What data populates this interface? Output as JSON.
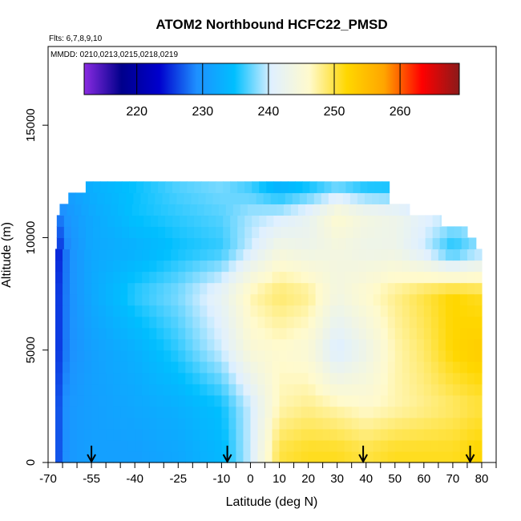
{
  "chart_data": {
    "type": "heatmap",
    "title": "ATOM2 Northbound HCFC22_PMSD",
    "annotations": {
      "flights": "Flts: 6,7,8,9,10",
      "dates": "MMDD: 0210,0213,0215,0218,0219"
    },
    "xlabel": "Latitude (deg N)",
    "ylabel": "Altitude (m)",
    "xlim": [
      -70,
      85
    ],
    "ylim": [
      0,
      18500
    ],
    "x_tick_labels": [
      "-70",
      "-55",
      "-40",
      "-25",
      "-10",
      "0",
      "10",
      "20",
      "30",
      "40",
      "50",
      "60",
      "70",
      "80"
    ],
    "x_tick_values": [
      -70,
      -55,
      -40,
      -25,
      -10,
      0,
      10,
      20,
      30,
      40,
      50,
      60,
      70,
      80
    ],
    "y_tick_labels": [
      "0",
      "5000",
      "10000",
      "15000"
    ],
    "y_tick_values": [
      0,
      5000,
      10000,
      15000
    ],
    "colorbar": {
      "ticks": [
        220,
        230,
        240,
        250,
        260
      ],
      "tick_labels": [
        "220",
        "230",
        "240",
        "250",
        "260"
      ],
      "range": [
        212,
        269
      ],
      "colors": [
        "#8a2be2",
        "#00008b",
        "#0000cd",
        "#1e90ff",
        "#00bfff",
        "#e0f0ff",
        "#fffacd",
        "#ffd700",
        "#ffa500",
        "#ff0000",
        "#8b1a1a"
      ]
    },
    "flight_arrow_latitudes": [
      -55,
      -8,
      39,
      76
    ],
    "altitude_bins_m": [
      250,
      750,
      1250,
      1750,
      2250,
      2750,
      3250,
      3750,
      4250,
      4750,
      5250,
      5750,
      6250,
      6750,
      7250,
      7750,
      8250,
      8750,
      9250,
      9750,
      10250,
      10750,
      11250,
      11750,
      12250
    ],
    "latitude_extents": [
      [
        -67.5,
        80
      ],
      [
        -67.5,
        80
      ],
      [
        -67.5,
        80
      ],
      [
        -67.5,
        80
      ],
      [
        -67.5,
        80
      ],
      [
        -67.5,
        80
      ],
      [
        -67.5,
        80
      ],
      [
        -67.5,
        80
      ],
      [
        -67.5,
        80
      ],
      [
        -67.5,
        80
      ],
      [
        -67.5,
        80
      ],
      [
        -67.5,
        80
      ],
      [
        -67.5,
        80
      ],
      [
        -67.5,
        80
      ],
      [
        -67.5,
        80
      ],
      [
        -67.5,
        80
      ],
      [
        -67.5,
        80
      ],
      [
        -67.5,
        80
      ],
      [
        -67.5,
        80
      ],
      [
        -67,
        78
      ],
      [
        -67,
        75
      ],
      [
        -67,
        66
      ],
      [
        -66,
        55
      ],
      [
        -63,
        48
      ],
      [
        -57,
        48
      ]
    ],
    "profile_anchors": {
      "latitudes": [
        -67,
        -63,
        -55,
        -40,
        -25,
        -10,
        0,
        10,
        20,
        30,
        40,
        50,
        60,
        70,
        78
      ],
      "altitude_levels_m": [
        500,
        2500,
        5000,
        7500,
        9500,
        11000,
        12500
      ],
      "values": [
        [
          226,
          230,
          231,
          231,
          232,
          234,
          240,
          250,
          251,
          251,
          250,
          251,
          251,
          251,
          252
        ],
        [
          226,
          230,
          231,
          232,
          233,
          235,
          240,
          247,
          248,
          247,
          246,
          247,
          248,
          249,
          250
        ],
        [
          225,
          229,
          231,
          233,
          236,
          240,
          245,
          246,
          245,
          240,
          243,
          247,
          249,
          252,
          253
        ],
        [
          225,
          229,
          232,
          236,
          238,
          242,
          247,
          249,
          248,
          244,
          246,
          248,
          250,
          252,
          251
        ],
        [
          224,
          229,
          232,
          233,
          235,
          236,
          240,
          244,
          243,
          244,
          243,
          243,
          240,
          235,
          238
        ],
        [
          228,
          230,
          232,
          235,
          236,
          237,
          239,
          240,
          242,
          246,
          244,
          243,
          241,
          240,
          240
        ],
        [
          230,
          231,
          233,
          235,
          237,
          238,
          236,
          232,
          234,
          236,
          234,
          234,
          234,
          234,
          234
        ]
      ]
    }
  }
}
